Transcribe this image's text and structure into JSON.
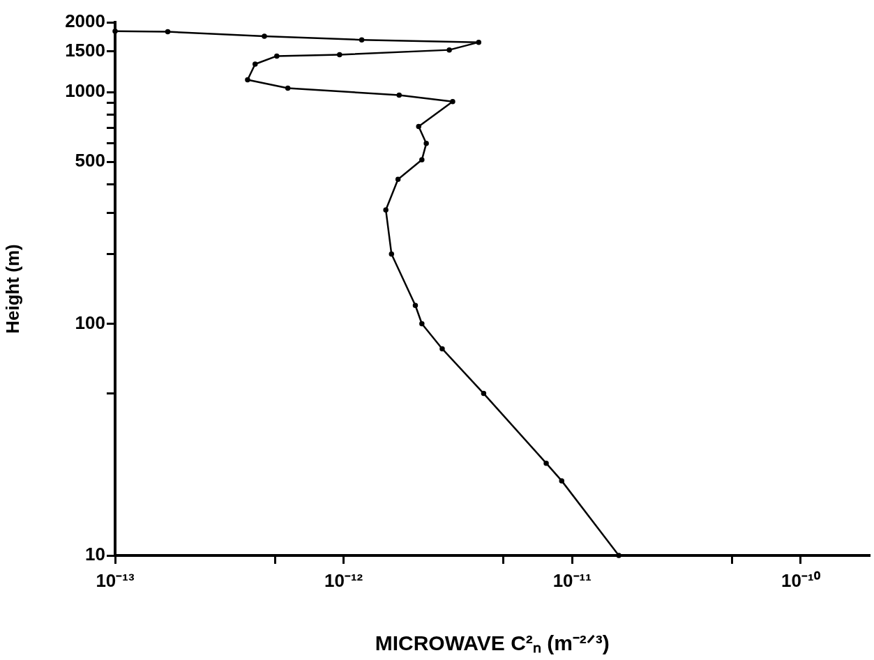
{
  "chart_data": {
    "type": "line",
    "xlabel": "MICROWAVE C²ₙ (m⁻²ᐟ³)",
    "ylabel": "Height (m)",
    "log": "xy",
    "grid": false,
    "legend": false,
    "marker": "circle",
    "line_style": "solid",
    "xlim": [
      1e-13,
      2e-10
    ],
    "xticks": [
      {
        "value": 1e-13,
        "label": "10⁻¹³"
      },
      {
        "value": 5e-13,
        "label": null
      },
      {
        "value": 1e-12,
        "label": "10⁻¹²"
      },
      {
        "value": 5e-12,
        "label": null
      },
      {
        "value": 1e-11,
        "label": "10⁻¹¹"
      },
      {
        "value": 5e-11,
        "label": null
      },
      {
        "value": 1e-10,
        "label": "10⁻¹⁰"
      }
    ],
    "ylim": [
      10,
      2000
    ],
    "yticks": [
      10,
      {
        "value": 50,
        "label": null
      },
      100,
      {
        "value": 200,
        "label": null
      },
      {
        "value": 300,
        "label": null
      },
      {
        "value": 400,
        "label": null
      },
      500,
      {
        "value": 600,
        "label": null
      },
      {
        "value": 700,
        "label": null
      },
      {
        "value": 800,
        "label": null
      },
      {
        "value": 900,
        "label": null
      },
      1000,
      1500,
      2000
    ],
    "series": [
      {
        "color": "#000000",
        "x": [
          1.6e-11,
          9e-12,
          7.7e-12,
          4.1e-12,
          2.7e-12,
          2.2e-12,
          2.06e-12,
          1.62e-12,
          1.53e-12,
          1.73e-12,
          2.2e-12,
          2.3e-12,
          2.13e-12,
          3e-12,
          1.75e-12,
          5.7e-13,
          3.8e-13,
          4.1e-13,
          5.1e-13,
          9.6e-13,
          2.9e-12,
          3.9e-12,
          1.2e-12,
          4.5e-13,
          1.7e-13,
          1e-13
        ],
        "values": [
          10,
          21,
          25,
          50,
          78,
          100,
          120,
          200,
          310,
          420,
          510,
          600,
          710,
          910,
          970,
          1040,
          1130,
          1320,
          1430,
          1450,
          1520,
          1640,
          1680,
          1740,
          1820,
          1830
        ]
      }
    ]
  }
}
